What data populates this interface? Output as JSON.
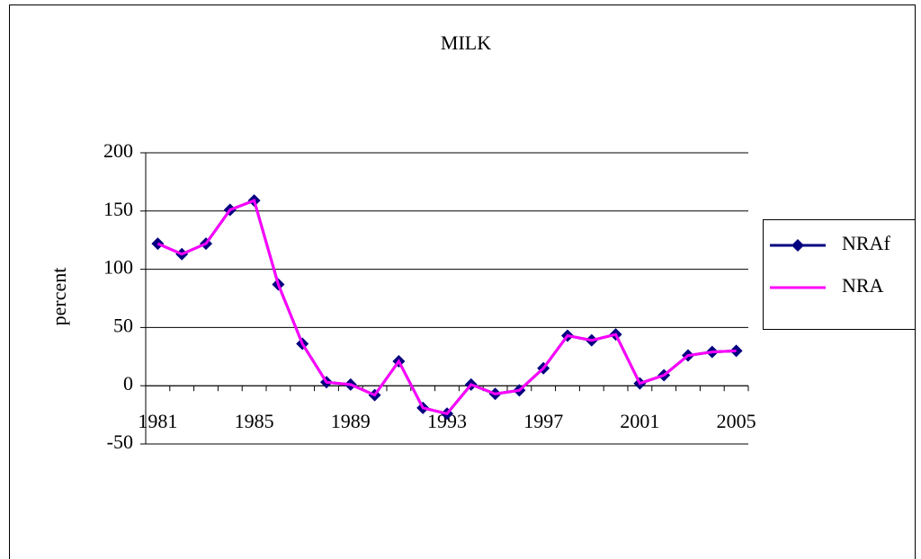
{
  "chart_data": {
    "type": "line",
    "title": "MILK",
    "y_label": "percent",
    "categories": [
      "1981",
      null,
      null,
      null,
      "1985",
      null,
      null,
      null,
      "1989",
      null,
      null,
      null,
      "1993",
      null,
      null,
      null,
      "1997",
      null,
      null,
      null,
      "2001",
      null,
      null,
      null,
      "2005"
    ],
    "series": [
      {
        "name": "NRAf",
        "color": "#000080",
        "marker": "diamond",
        "values": [
          122,
          113,
          122,
          151,
          159,
          87,
          36,
          3,
          1,
          -8,
          21,
          -19,
          -24,
          1,
          -7,
          -4,
          15,
          43,
          39,
          44,
          2,
          9,
          26,
          29,
          30
        ]
      },
      {
        "name": "NRA",
        "color": "#ff00ff",
        "values": [
          122,
          113,
          122,
          151,
          159,
          87,
          36,
          3,
          1,
          -8,
          21,
          -19,
          -24,
          1,
          -7,
          -4,
          15,
          43,
          39,
          44,
          2,
          9,
          26,
          29,
          30
        ]
      }
    ],
    "ylim": [
      -50,
      200
    ],
    "yticks": [
      -50,
      0,
      50,
      100,
      150,
      200
    ],
    "grid": true,
    "legend": "right"
  }
}
